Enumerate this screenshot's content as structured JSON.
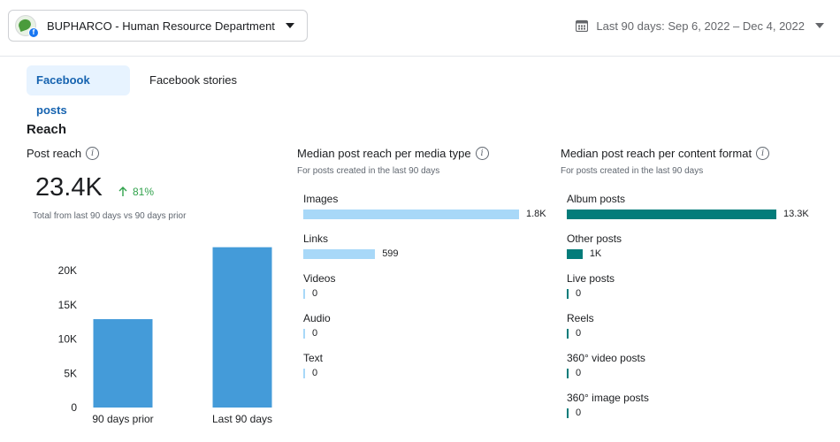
{
  "header": {
    "account_name": "BUPHARCO - Human Resource Department",
    "date_range": "Last 90 days: Sep 6, 2022 – Dec 4, 2022"
  },
  "tabs": [
    {
      "label": "Facebook posts",
      "active": true
    },
    {
      "label": "Facebook stories",
      "active": false
    }
  ],
  "section": {
    "title": "Reach"
  },
  "post_reach": {
    "label": "Post reach",
    "value": "23.4K",
    "delta": "81%",
    "note": "Total from last 90 days vs 90 days prior"
  },
  "media_type": {
    "title": "Median post reach per media type",
    "subtitle": "For posts created in the last 90 days",
    "items": [
      {
        "label": "Images",
        "value_text": "1.8K",
        "value": 1800
      },
      {
        "label": "Links",
        "value_text": "599",
        "value": 599
      },
      {
        "label": "Videos",
        "value_text": "0",
        "value": 0
      },
      {
        "label": "Audio",
        "value_text": "0",
        "value": 0
      },
      {
        "label": "Text",
        "value_text": "0",
        "value": 0
      }
    ],
    "color": "#a8d8f8"
  },
  "content_format": {
    "title": "Median post reach per content format",
    "subtitle": "For posts created in the last 90 days",
    "items": [
      {
        "label": "Album posts",
        "value_text": "13.3K",
        "value": 13300
      },
      {
        "label": "Other posts",
        "value_text": "1K",
        "value": 1000
      },
      {
        "label": "Live posts",
        "value_text": "0",
        "value": 0
      },
      {
        "label": "Reels",
        "value_text": "0",
        "value": 0
      },
      {
        "label": "360° video posts",
        "value_text": "0",
        "value": 0
      },
      {
        "label": "360° image posts",
        "value_text": "0",
        "value": 0
      }
    ],
    "color": "#037c7a"
  },
  "chart_data": {
    "type": "bar",
    "categories": [
      "90 days prior",
      "Last 90 days"
    ],
    "values": [
      12900,
      23400
    ],
    "y_ticks": [
      "0",
      "5K",
      "10K",
      "15K",
      "20K"
    ],
    "ylim": [
      0,
      25000
    ],
    "color": "#449bd9"
  }
}
